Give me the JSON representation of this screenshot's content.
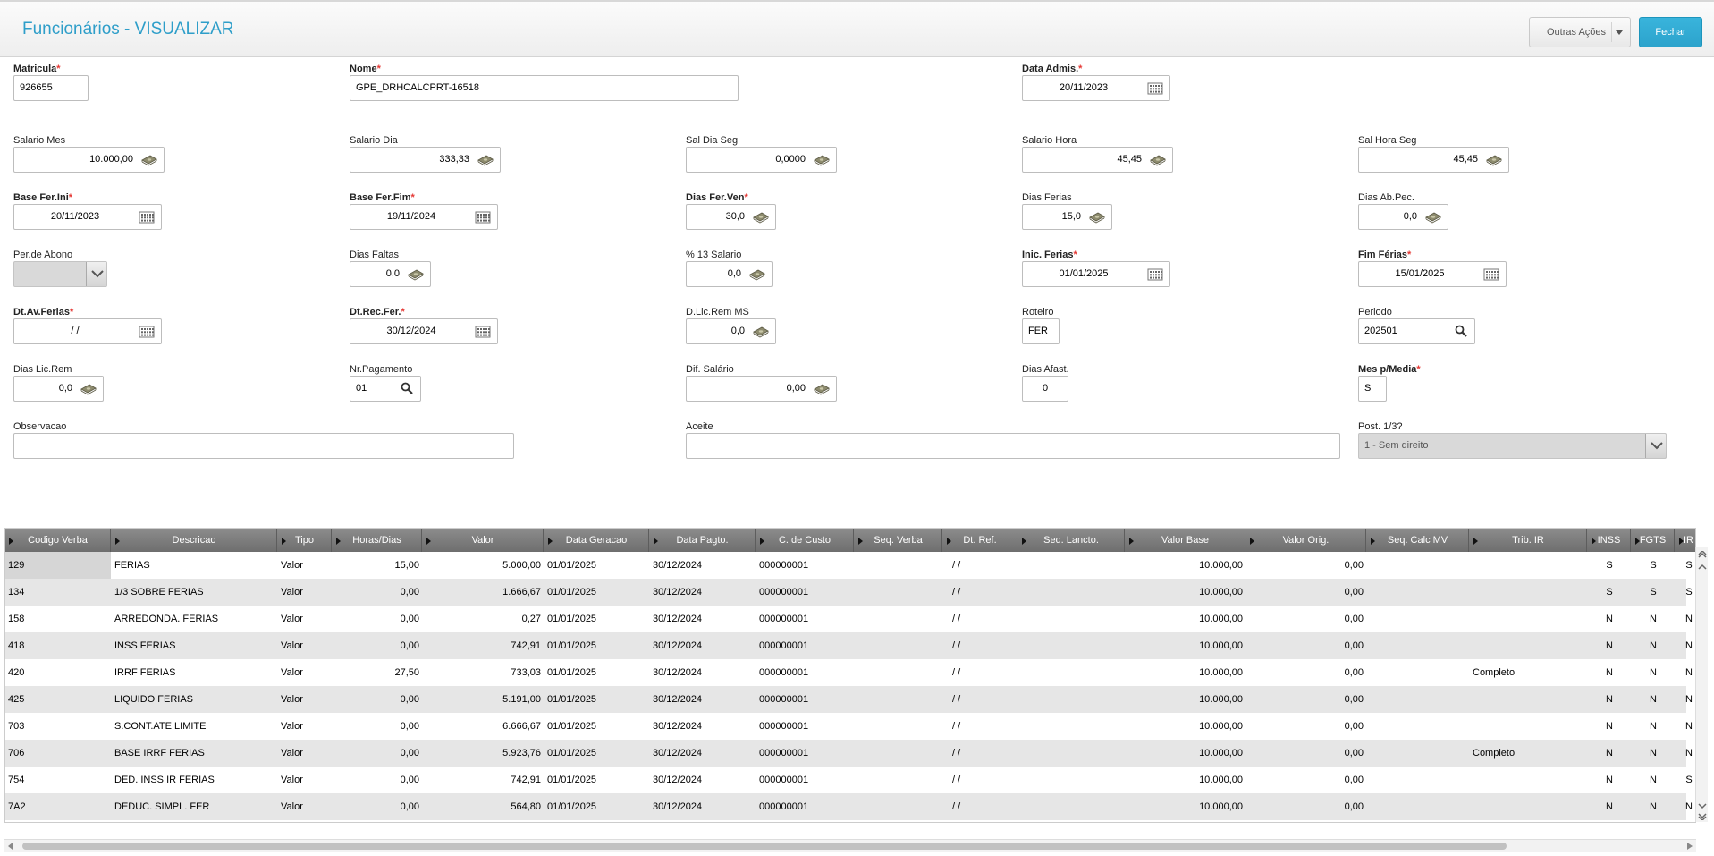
{
  "header": {
    "title": "Funcionários - VISUALIZAR",
    "outras_acoes": "Outras Ações",
    "fechar": "Fechar"
  },
  "fields": {
    "matricula": {
      "label": "Matricula",
      "value": "926655"
    },
    "nome": {
      "label": "Nome",
      "value": "GPE_DRHCALCPRT-16518"
    },
    "data_admis": {
      "label": "Data Admis.",
      "value": "20/11/2023"
    },
    "salario_mes": {
      "label": "Salario Mes",
      "value": "10.000,00"
    },
    "salario_dia": {
      "label": "Salario Dia",
      "value": "333,33"
    },
    "sal_dia_seg": {
      "label": "Sal Dia Seg",
      "value": "0,0000"
    },
    "salario_hora": {
      "label": "Salario Hora",
      "value": "45,45"
    },
    "sal_hora_seg": {
      "label": "Sal Hora Seg",
      "value": "45,45"
    },
    "base_fer_ini": {
      "label": "Base Fer.Ini",
      "value": "20/11/2023"
    },
    "base_fer_fim": {
      "label": "Base Fer.Fim",
      "value": "19/11/2024"
    },
    "dias_fer_ven": {
      "label": "Dias Fer.Ven",
      "value": "30,0"
    },
    "dias_ferias": {
      "label": "Dias Ferias",
      "value": "15,0"
    },
    "dias_ab_pec": {
      "label": "Dias Ab.Pec.",
      "value": "0,0"
    },
    "per_abono": {
      "label": "Per.de Abono",
      "value": ""
    },
    "dias_faltas": {
      "label": "Dias Faltas",
      "value": "0,0"
    },
    "pct_13_salario": {
      "label": "% 13 Salario",
      "value": "0,0"
    },
    "inic_ferias": {
      "label": "Inic. Ferias",
      "value": "01/01/2025"
    },
    "fim_ferias": {
      "label": "Fim Férias",
      "value": "15/01/2025"
    },
    "dt_av_ferias": {
      "label": "Dt.Av.Ferias",
      "value": "/ /"
    },
    "dt_rec_fer": {
      "label": "Dt.Rec.Fer.",
      "value": "30/12/2024"
    },
    "d_lic_rem_ms": {
      "label": "D.Lic.Rem MS",
      "value": "0,0"
    },
    "roteiro": {
      "label": "Roteiro",
      "value": "FER"
    },
    "periodo": {
      "label": "Periodo",
      "value": "202501"
    },
    "dias_lic_rem": {
      "label": "Dias Lic.Rem",
      "value": "0,0"
    },
    "nr_pagamento": {
      "label": "Nr.Pagamento",
      "value": "01"
    },
    "dif_salario": {
      "label": "Dif. Salário",
      "value": "0,00"
    },
    "dias_afast": {
      "label": "Dias Afast.",
      "value": "0"
    },
    "mes_p_media": {
      "label": "Mes p/Media",
      "value": "S"
    },
    "observacao": {
      "label": "Observacao",
      "value": ""
    },
    "aceite": {
      "label": "Aceite",
      "value": ""
    },
    "post_13": {
      "label": "Post. 1/3?",
      "value": "1 - Sem direito"
    }
  },
  "grid": {
    "columns": [
      "Codigo Verba",
      "Descricao",
      "Tipo",
      "Horas/Dias",
      "Valor",
      "Data Geracao",
      "Data Pagto.",
      "C. de Custo",
      "Seq. Verba",
      "Dt. Ref.",
      "Seq. Lancto.",
      "Valor Base",
      "Valor Orig.",
      "Seq. Calc MV",
      "Trib. IR",
      "INSS",
      "FGTS",
      "IR"
    ],
    "rows": [
      {
        "codigo": "129",
        "descricao": "FERIAS",
        "tipo": "Valor",
        "horas": "15,00",
        "valor": "5.000,00",
        "data_geracao": "01/01/2025",
        "data_pagto": "30/12/2024",
        "custo": "000000001",
        "seq_verba": "",
        "dt_ref": "/ /",
        "seq_lancto": "",
        "valor_base": "10.000,00",
        "valor_orig": "0,00",
        "seq_calc": "",
        "trib_ir": "",
        "inss": "S",
        "fgts": "S",
        "ir": "S"
      },
      {
        "codigo": "134",
        "descricao": "1/3 SOBRE FERIAS",
        "tipo": "Valor",
        "horas": "0,00",
        "valor": "1.666,67",
        "data_geracao": "01/01/2025",
        "data_pagto": "30/12/2024",
        "custo": "000000001",
        "seq_verba": "",
        "dt_ref": "/ /",
        "seq_lancto": "",
        "valor_base": "10.000,00",
        "valor_orig": "0,00",
        "seq_calc": "",
        "trib_ir": "",
        "inss": "S",
        "fgts": "S",
        "ir": "S"
      },
      {
        "codigo": "158",
        "descricao": "ARREDONDA. FERIAS",
        "tipo": "Valor",
        "horas": "0,00",
        "valor": "0,27",
        "data_geracao": "01/01/2025",
        "data_pagto": "30/12/2024",
        "custo": "000000001",
        "seq_verba": "",
        "dt_ref": "/ /",
        "seq_lancto": "",
        "valor_base": "10.000,00",
        "valor_orig": "0,00",
        "seq_calc": "",
        "trib_ir": "",
        "inss": "N",
        "fgts": "N",
        "ir": "N"
      },
      {
        "codigo": "418",
        "descricao": "INSS FERIAS",
        "tipo": "Valor",
        "horas": "0,00",
        "valor": "742,91",
        "data_geracao": "01/01/2025",
        "data_pagto": "30/12/2024",
        "custo": "000000001",
        "seq_verba": "",
        "dt_ref": "/ /",
        "seq_lancto": "",
        "valor_base": "10.000,00",
        "valor_orig": "0,00",
        "seq_calc": "",
        "trib_ir": "",
        "inss": "N",
        "fgts": "N",
        "ir": "N"
      },
      {
        "codigo": "420",
        "descricao": "IRRF FERIAS",
        "tipo": "Valor",
        "horas": "27,50",
        "valor": "733,03",
        "data_geracao": "01/01/2025",
        "data_pagto": "30/12/2024",
        "custo": "000000001",
        "seq_verba": "",
        "dt_ref": "/ /",
        "seq_lancto": "",
        "valor_base": "10.000,00",
        "valor_orig": "0,00",
        "seq_calc": "",
        "trib_ir": "Completo",
        "inss": "N",
        "fgts": "N",
        "ir": "N"
      },
      {
        "codigo": "425",
        "descricao": "LIQUIDO FERIAS",
        "tipo": "Valor",
        "horas": "0,00",
        "valor": "5.191,00",
        "data_geracao": "01/01/2025",
        "data_pagto": "30/12/2024",
        "custo": "000000001",
        "seq_verba": "",
        "dt_ref": "/ /",
        "seq_lancto": "",
        "valor_base": "10.000,00",
        "valor_orig": "0,00",
        "seq_calc": "",
        "trib_ir": "",
        "inss": "N",
        "fgts": "N",
        "ir": "N"
      },
      {
        "codigo": "703",
        "descricao": "S.CONT.ATE LIMITE",
        "tipo": "Valor",
        "horas": "0,00",
        "valor": "6.666,67",
        "data_geracao": "01/01/2025",
        "data_pagto": "30/12/2024",
        "custo": "000000001",
        "seq_verba": "",
        "dt_ref": "/ /",
        "seq_lancto": "",
        "valor_base": "10.000,00",
        "valor_orig": "0,00",
        "seq_calc": "",
        "trib_ir": "",
        "inss": "N",
        "fgts": "N",
        "ir": "N"
      },
      {
        "codigo": "706",
        "descricao": "BASE IRRF FERIAS",
        "tipo": "Valor",
        "horas": "0,00",
        "valor": "5.923,76",
        "data_geracao": "01/01/2025",
        "data_pagto": "30/12/2024",
        "custo": "000000001",
        "seq_verba": "",
        "dt_ref": "/ /",
        "seq_lancto": "",
        "valor_base": "10.000,00",
        "valor_orig": "0,00",
        "seq_calc": "",
        "trib_ir": "Completo",
        "inss": "N",
        "fgts": "N",
        "ir": "N"
      },
      {
        "codigo": "754",
        "descricao": "DED. INSS IR FERIAS",
        "tipo": "Valor",
        "horas": "0,00",
        "valor": "742,91",
        "data_geracao": "01/01/2025",
        "data_pagto": "30/12/2024",
        "custo": "000000001",
        "seq_verba": "",
        "dt_ref": "/ /",
        "seq_lancto": "",
        "valor_base": "10.000,00",
        "valor_orig": "0,00",
        "seq_calc": "",
        "trib_ir": "",
        "inss": "N",
        "fgts": "N",
        "ir": "S"
      },
      {
        "codigo": "7A2",
        "descricao": "DEDUC. SIMPL. FER",
        "tipo": "Valor",
        "horas": "0,00",
        "valor": "564,80",
        "data_geracao": "01/01/2025",
        "data_pagto": "30/12/2024",
        "custo": "000000001",
        "seq_verba": "",
        "dt_ref": "/ /",
        "seq_lancto": "",
        "valor_base": "10.000,00",
        "valor_orig": "0,00",
        "seq_calc": "",
        "trib_ir": "",
        "inss": "N",
        "fgts": "N",
        "ir": "N"
      }
    ]
  }
}
